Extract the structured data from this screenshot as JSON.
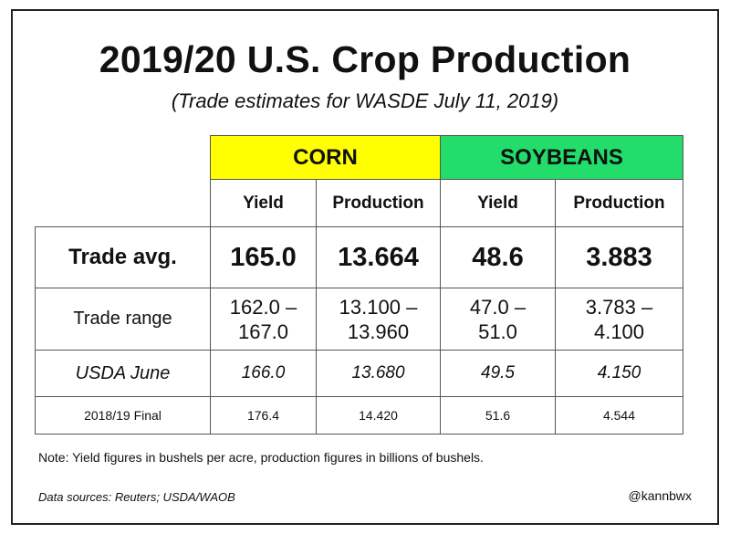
{
  "title": "2019/20 U.S. Crop Production",
  "subtitle": "(Trade estimates for WASDE July 11, 2019)",
  "table": {
    "corn_label": "CORN",
    "soy_label": "SOYBEANS",
    "sub_headers": [
      "Yield",
      "Production",
      "Yield",
      "Production"
    ],
    "rows": [
      {
        "label": "Trade avg.",
        "values": [
          "165.0",
          "13.664",
          "48.6",
          "3.883"
        ]
      },
      {
        "label": "Trade range",
        "values": [
          [
            "162.0 –",
            "167.0"
          ],
          [
            "13.100 –",
            "13.960"
          ],
          [
            "47.0 –",
            "51.0"
          ],
          [
            "3.783 –",
            "4.100"
          ]
        ]
      },
      {
        "label": "USDA June",
        "values": [
          "166.0",
          "13.680",
          "49.5",
          "4.150"
        ]
      },
      {
        "label": "2018/19 Final",
        "values": [
          "176.4",
          "14.420",
          "51.6",
          "4.544"
        ]
      }
    ]
  },
  "note": "Note: Yield figures in bushels per acre, production figures in billions of bushels.",
  "sources": "Data sources: Reuters; USDA/WAOB",
  "handle": "@kannbwx"
}
